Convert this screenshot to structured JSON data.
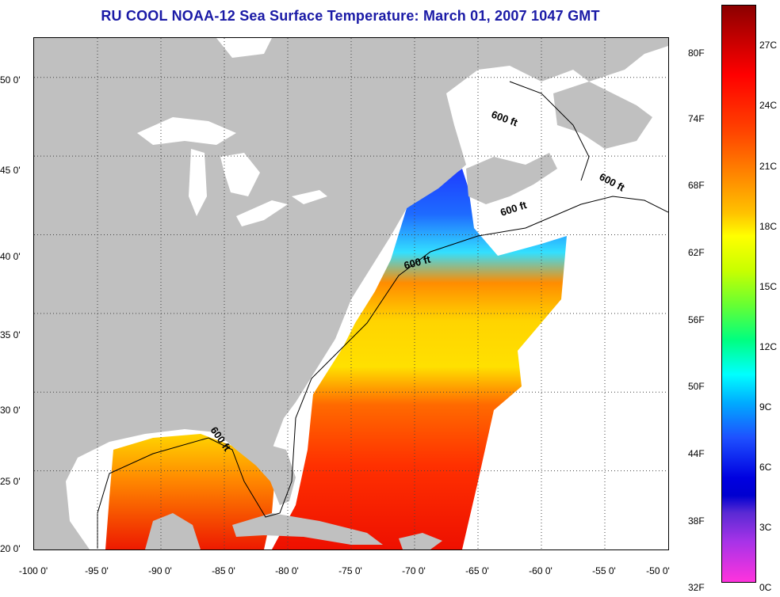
{
  "title": "RU COOL  NOAA-12  Sea Surface Temperature:  March 01, 2007 1047 GMT",
  "map": {
    "lon_range": [
      -100,
      -50
    ],
    "lat_range": [
      20,
      52.5
    ],
    "x_ticks": [
      "-100 0'",
      "-95 0'",
      "-90 0'",
      "-85 0'",
      "-80 0'",
      "-75 0'",
      "-70 0'",
      "-65 0'",
      "-60 0'",
      "-55 0'",
      "-50 0'"
    ],
    "y_ticks": [
      "50 0'",
      "45 0'",
      "40 0'",
      "35 0'",
      "30 0'",
      "25 0'",
      "20 0'"
    ],
    "grid": "dotted",
    "contour_label": "600 ft",
    "land_color": "#c0c0c0",
    "cloud_color": "#ffffff"
  },
  "colorbar": {
    "fahrenheit_labels": [
      "80F",
      "74F",
      "68F",
      "62F",
      "56F",
      "50F",
      "44F",
      "38F",
      "32F"
    ],
    "celsius_labels": [
      "27C",
      "24C",
      "21C",
      "18C",
      "15C",
      "12C",
      "9C",
      "6C",
      "3C",
      "0C"
    ],
    "range_c": [
      0,
      29
    ]
  }
}
